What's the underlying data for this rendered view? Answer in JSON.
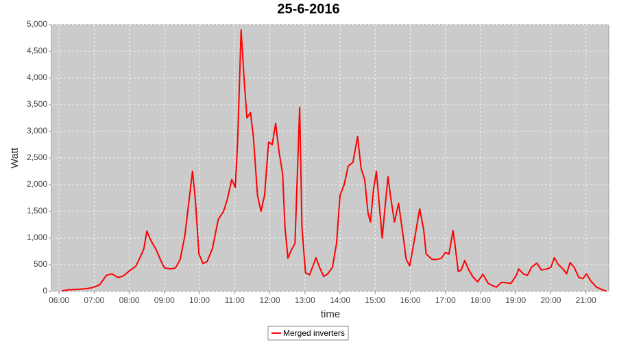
{
  "chart_data": {
    "type": "line",
    "title": "25-6-2016",
    "x_label": "time",
    "y_label": "Watt",
    "x": [
      "06:05",
      "06:16",
      "06:34",
      "06:46",
      "06:57",
      "07:09",
      "07:21",
      "07:30",
      "07:41",
      "07:50",
      "08:02",
      "08:11",
      "08:19",
      "08:25",
      "08:30",
      "08:37",
      "08:46",
      "08:53",
      "09:00",
      "09:10",
      "09:19",
      "09:27",
      "09:35",
      "09:42",
      "09:48",
      "09:53",
      "09:59",
      "10:06",
      "10:13",
      "10:22",
      "10:32",
      "10:41",
      "10:48",
      "10:55",
      "11:01",
      "11:05",
      "11:11",
      "11:16",
      "11:21",
      "11:27",
      "11:32",
      "11:39",
      "11:45",
      "11:51",
      "11:58",
      "12:04",
      "12:10",
      "12:16",
      "12:22",
      "12:26",
      "12:31",
      "12:37",
      "12:43",
      "12:51",
      "12:55",
      "13:01",
      "13:08",
      "13:19",
      "13:25",
      "13:32",
      "13:39",
      "13:47",
      "13:54",
      "14:00",
      "14:07",
      "14:14",
      "14:22",
      "14:30",
      "14:36",
      "14:42",
      "14:48",
      "14:52",
      "14:57",
      "15:02",
      "15:08",
      "15:12",
      "15:17",
      "15:22",
      "15:26",
      "15:33",
      "15:40",
      "15:47",
      "15:53",
      "15:59",
      "16:06",
      "16:16",
      "16:23",
      "16:27",
      "16:37",
      "16:46",
      "16:53",
      "17:00",
      "17:06",
      "17:13",
      "17:16",
      "17:22",
      "17:27",
      "17:33",
      "17:40",
      "17:47",
      "17:55",
      "18:04",
      "18:13",
      "18:22",
      "18:27",
      "18:36",
      "18:45",
      "18:52",
      "19:01",
      "19:05",
      "19:13",
      "19:20",
      "19:27",
      "19:36",
      "19:44",
      "19:53",
      "20:00",
      "20:06",
      "20:13",
      "20:20",
      "20:27",
      "20:33",
      "20:40",
      "20:48",
      "20:55",
      "21:01",
      "21:08",
      "21:18",
      "21:30",
      "21:35"
    ],
    "series": [
      {
        "name": "Merged inverters",
        "color": "#ff0000",
        "values": [
          10,
          30,
          40,
          50,
          70,
          120,
          300,
          330,
          260,
          290,
          400,
          470,
          650,
          800,
          1130,
          950,
          780,
          600,
          440,
          420,
          440,
          600,
          1050,
          1700,
          2250,
          1700,
          700,
          520,
          560,
          800,
          1350,
          1500,
          1750,
          2100,
          1950,
          2800,
          4900,
          4000,
          3250,
          3350,
          2900,
          1800,
          1500,
          1800,
          2800,
          2750,
          3150,
          2600,
          2200,
          1200,
          620,
          780,
          900,
          3450,
          1200,
          350,
          310,
          630,
          450,
          280,
          330,
          450,
          900,
          1800,
          2000,
          2350,
          2420,
          2900,
          2300,
          2100,
          1450,
          1300,
          1900,
          2250,
          1500,
          1000,
          1600,
          2150,
          1800,
          1300,
          1650,
          1100,
          600,
          480,
          900,
          1550,
          1150,
          700,
          600,
          600,
          620,
          730,
          700,
          1140,
          900,
          370,
          400,
          580,
          400,
          270,
          180,
          320,
          150,
          100,
          80,
          170,
          160,
          150,
          300,
          420,
          330,
          300,
          450,
          530,
          400,
          420,
          450,
          630,
          500,
          430,
          330,
          540,
          450,
          260,
          240,
          330,
          200,
          80,
          20,
          10
        ]
      }
    ],
    "xlim": [
      "05:47",
      "21:39"
    ],
    "xticks": [
      "06:00",
      "07:00",
      "08:00",
      "09:00",
      "10:00",
      "11:00",
      "12:00",
      "13:00",
      "14:00",
      "15:00",
      "16:00",
      "17:00",
      "18:00",
      "19:00",
      "20:00",
      "21:00"
    ],
    "ylim": [
      0,
      5000
    ],
    "yticks": [
      0,
      500,
      {
        "value": 1000,
        "label": "1,000"
      },
      {
        "value": 1500,
        "label": "1,500"
      },
      {
        "value": 2000,
        "label": "2,000"
      },
      {
        "value": 2500,
        "label": "2,500"
      },
      {
        "value": 3000,
        "label": "3,000"
      },
      {
        "value": 3500,
        "label": "3,500"
      },
      {
        "value": 4000,
        "label": "4,000"
      },
      {
        "value": 4500,
        "label": "4,500"
      },
      {
        "value": 5000,
        "label": "5,000"
      }
    ],
    "grid": true,
    "legend": "bottom"
  }
}
